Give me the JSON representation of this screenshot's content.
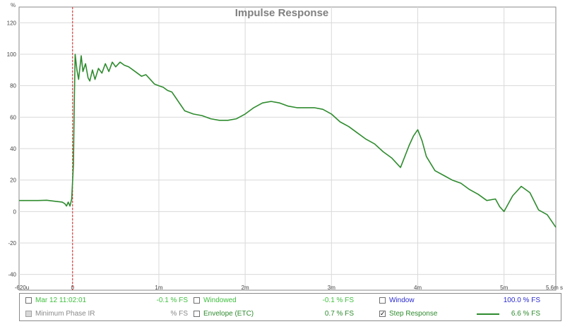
{
  "chart_data": {
    "type": "line",
    "title": "Impulse Response",
    "y_unit": "%",
    "x_unit": "s",
    "ylim": [
      -50,
      130
    ],
    "xlim": [
      -0.00062,
      0.0056
    ],
    "grid": true,
    "y_ticks": [
      "120",
      "100",
      "80",
      "60",
      "40",
      "20",
      "0",
      "-20",
      "-40"
    ],
    "x_ticks": [
      "-620u",
      "0",
      "1m",
      "2m",
      "3m",
      "4m",
      "5m",
      "5.6m s"
    ],
    "marker_x": 0,
    "series": [
      {
        "name": "Step Response",
        "color": "#2e8b2e",
        "points": [
          [
            -0.00062,
            7
          ],
          [
            -0.0005,
            7
          ],
          [
            -0.0004,
            7
          ],
          [
            -0.0003,
            7.2
          ],
          [
            -0.0002,
            6.5
          ],
          [
            -0.00012,
            6
          ],
          [
            -9e-05,
            5
          ],
          [
            -7e-05,
            3.5
          ],
          [
            -5e-05,
            6
          ],
          [
            -3e-05,
            3.5
          ],
          [
            -1e-05,
            8
          ],
          [
            1e-05,
            30
          ],
          [
            2e-05,
            70
          ],
          [
            3e-05,
            100
          ],
          [
            5e-05,
            90
          ],
          [
            7e-05,
            84
          ],
          [
            0.0001,
            99
          ],
          [
            0.00012,
            89
          ],
          [
            0.00015,
            94
          ],
          [
            0.00018,
            85
          ],
          [
            0.0002,
            83
          ],
          [
            0.00023,
            90
          ],
          [
            0.00026,
            84
          ],
          [
            0.0003,
            91
          ],
          [
            0.00034,
            88
          ],
          [
            0.00038,
            94
          ],
          [
            0.00042,
            89
          ],
          [
            0.00046,
            95
          ],
          [
            0.0005,
            92
          ],
          [
            0.00055,
            95
          ],
          [
            0.0006,
            93
          ],
          [
            0.00065,
            92
          ],
          [
            0.0007,
            90
          ],
          [
            0.00075,
            88
          ],
          [
            0.0008,
            86
          ],
          [
            0.00085,
            87
          ],
          [
            0.0009,
            84
          ],
          [
            0.00095,
            81
          ],
          [
            0.001,
            80
          ],
          [
            0.00105,
            79
          ],
          [
            0.0011,
            77
          ],
          [
            0.00115,
            76
          ],
          [
            0.0012,
            72
          ],
          [
            0.00125,
            68
          ],
          [
            0.0013,
            64
          ],
          [
            0.0014,
            62
          ],
          [
            0.0015,
            61
          ],
          [
            0.0016,
            59
          ],
          [
            0.0017,
            58
          ],
          [
            0.0018,
            58
          ],
          [
            0.0019,
            59
          ],
          [
            0.002,
            62
          ],
          [
            0.0021,
            66
          ],
          [
            0.0022,
            69
          ],
          [
            0.0023,
            70
          ],
          [
            0.0024,
            69
          ],
          [
            0.0025,
            67
          ],
          [
            0.0026,
            66
          ],
          [
            0.0027,
            66
          ],
          [
            0.0028,
            66
          ],
          [
            0.0029,
            65
          ],
          [
            0.003,
            62
          ],
          [
            0.0031,
            57
          ],
          [
            0.0032,
            54
          ],
          [
            0.0033,
            50
          ],
          [
            0.0034,
            46
          ],
          [
            0.0035,
            43
          ],
          [
            0.0036,
            38
          ],
          [
            0.0037,
            34
          ],
          [
            0.0038,
            28
          ],
          [
            0.00385,
            35
          ],
          [
            0.0039,
            42
          ],
          [
            0.00395,
            48
          ],
          [
            0.004,
            52
          ],
          [
            0.00405,
            45
          ],
          [
            0.0041,
            35
          ],
          [
            0.0042,
            26
          ],
          [
            0.0043,
            23
          ],
          [
            0.0044,
            20
          ],
          [
            0.0045,
            18
          ],
          [
            0.0046,
            14
          ],
          [
            0.0047,
            11
          ],
          [
            0.0048,
            7
          ],
          [
            0.0049,
            8
          ],
          [
            0.00495,
            3
          ],
          [
            0.005,
            0
          ],
          [
            0.0051,
            10
          ],
          [
            0.0052,
            16
          ],
          [
            0.0053,
            12
          ],
          [
            0.0054,
            1
          ],
          [
            0.0055,
            -2
          ],
          [
            0.0056,
            -10
          ]
        ]
      }
    ]
  },
  "legend": {
    "row1": [
      {
        "label": "Mar 12 11:02:01",
        "value": "-0.1 % FS",
        "checked": false,
        "disabled": false,
        "color": "#40c040"
      },
      {
        "label": "Windowed",
        "value": "-0.1 % FS",
        "checked": false,
        "disabled": false,
        "color": "#40c040"
      },
      {
        "label": "Window",
        "value": "100.0 % FS",
        "checked": false,
        "disabled": false,
        "color": "#2a2ad0"
      }
    ],
    "row2": [
      {
        "label": "Minimum Phase IR",
        "value": "% FS",
        "checked": false,
        "disabled": true,
        "color": "#8a8a8a"
      },
      {
        "label": "Envelope (ETC)",
        "value": "0.7 % FS",
        "checked": false,
        "disabled": false,
        "color": "#2e8b2e"
      },
      {
        "label": "Step Response",
        "value": "6.6 % FS",
        "checked": true,
        "disabled": false,
        "color": "#2e8b2e"
      }
    ]
  }
}
